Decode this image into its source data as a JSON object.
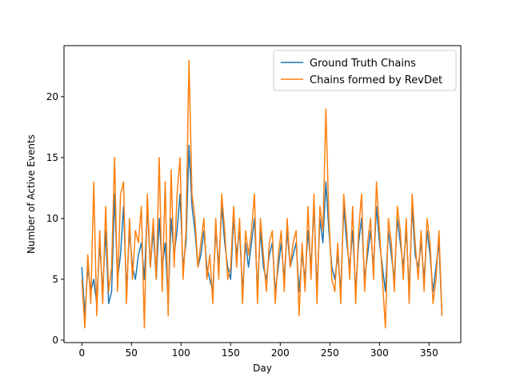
{
  "chart_data": {
    "type": "line",
    "title": "",
    "xlabel": "Day",
    "ylabel": "Number of Active Events",
    "xlim": [
      -18,
      382
    ],
    "ylim": [
      -0.2,
      24.2
    ],
    "xticks": [
      0,
      50,
      100,
      150,
      200,
      250,
      300,
      350
    ],
    "yticks": [
      0,
      5,
      10,
      15,
      20
    ],
    "grid": false,
    "legend_position": "top-right",
    "series": [
      {
        "name": "Ground Truth Chains",
        "color": "#1f77b4",
        "x": [
          0,
          3,
          6,
          9,
          12,
          15,
          18,
          21,
          24,
          27,
          30,
          33,
          36,
          39,
          42,
          45,
          48,
          51,
          54,
          57,
          60,
          63,
          66,
          69,
          72,
          75,
          78,
          81,
          84,
          87,
          90,
          93,
          96,
          99,
          102,
          105,
          108,
          111,
          114,
          117,
          120,
          123,
          126,
          129,
          132,
          135,
          138,
          141,
          144,
          147,
          150,
          153,
          156,
          159,
          162,
          165,
          168,
          171,
          174,
          177,
          180,
          183,
          186,
          189,
          192,
          195,
          198,
          201,
          204,
          207,
          210,
          213,
          216,
          219,
          222,
          225,
          228,
          231,
          234,
          237,
          240,
          243,
          246,
          249,
          252,
          255,
          258,
          261,
          264,
          267,
          270,
          273,
          276,
          279,
          282,
          285,
          288,
          291,
          294,
          297,
          300,
          303,
          306,
          309,
          312,
          315,
          318,
          321,
          324,
          327,
          330,
          333,
          336,
          339,
          342,
          345,
          348,
          351,
          354,
          357,
          360,
          363
        ],
        "values": [
          6,
          2,
          6,
          4,
          5,
          3,
          8,
          4,
          9,
          3,
          4,
          12,
          5,
          7,
          11,
          4,
          9,
          6,
          5,
          7,
          8,
          5,
          11,
          6,
          9,
          5,
          10,
          6,
          8,
          3,
          10,
          7,
          9,
          12,
          6,
          8,
          16,
          11,
          9,
          6,
          7,
          9,
          6,
          5,
          4,
          9,
          6,
          11,
          8,
          6,
          5,
          10,
          7,
          9,
          4,
          8,
          6,
          8,
          10,
          4,
          9,
          6,
          5,
          7,
          8,
          4,
          6,
          8,
          5,
          9,
          6,
          7,
          8,
          4,
          7,
          5,
          9,
          6,
          11,
          4,
          10,
          8,
          13,
          9,
          6,
          5,
          7,
          4,
          11,
          8,
          6,
          9,
          4,
          8,
          10,
          5,
          7,
          9,
          6,
          11,
          8,
          6,
          4,
          9,
          7,
          5,
          10,
          8,
          6,
          9,
          4,
          11,
          7,
          6,
          8,
          5,
          9,
          7,
          4,
          6,
          8,
          2
        ]
      },
      {
        "name": "Chains formed by RevDet",
        "color": "#ff7f0e",
        "x": [
          0,
          3,
          6,
          9,
          12,
          15,
          18,
          21,
          24,
          27,
          30,
          33,
          36,
          39,
          42,
          45,
          48,
          51,
          54,
          57,
          60,
          63,
          66,
          69,
          72,
          75,
          78,
          81,
          84,
          87,
          90,
          93,
          96,
          99,
          102,
          105,
          108,
          111,
          114,
          117,
          120,
          123,
          126,
          129,
          132,
          135,
          138,
          141,
          144,
          147,
          150,
          153,
          156,
          159,
          162,
          165,
          168,
          171,
          174,
          177,
          180,
          183,
          186,
          189,
          192,
          195,
          198,
          201,
          204,
          207,
          210,
          213,
          216,
          219,
          222,
          225,
          228,
          231,
          234,
          237,
          240,
          243,
          246,
          249,
          252,
          255,
          258,
          261,
          264,
          267,
          270,
          273,
          276,
          279,
          282,
          285,
          288,
          291,
          294,
          297,
          300,
          303,
          306,
          309,
          312,
          315,
          318,
          321,
          324,
          327,
          330,
          333,
          336,
          339,
          342,
          345,
          348,
          351,
          354,
          357,
          360,
          363
        ],
        "values": [
          5,
          1,
          7,
          3,
          13,
          2,
          9,
          3,
          11,
          4,
          6,
          15,
          4,
          12,
          13,
          3,
          10,
          5,
          9,
          8,
          11,
          1,
          12,
          6,
          10,
          5,
          15,
          4,
          13,
          2,
          14,
          6,
          12,
          15,
          5,
          9,
          23,
          12,
          10,
          6,
          8,
          10,
          5,
          7,
          3,
          10,
          5,
          12,
          9,
          5,
          6,
          11,
          6,
          10,
          3,
          9,
          7,
          9,
          12,
          3,
          10,
          7,
          4,
          8,
          9,
          3,
          7,
          9,
          4,
          10,
          6,
          8,
          9,
          2,
          8,
          4,
          11,
          5,
          12,
          3,
          11,
          9,
          19,
          10,
          5,
          4,
          8,
          3,
          12,
          9,
          5,
          11,
          3,
          9,
          12,
          4,
          8,
          10,
          5,
          13,
          9,
          5,
          1,
          10,
          8,
          4,
          11,
          9,
          5,
          10,
          3,
          12,
          8,
          5,
          9,
          4,
          10,
          8,
          3,
          5,
          9,
          2
        ]
      }
    ]
  }
}
